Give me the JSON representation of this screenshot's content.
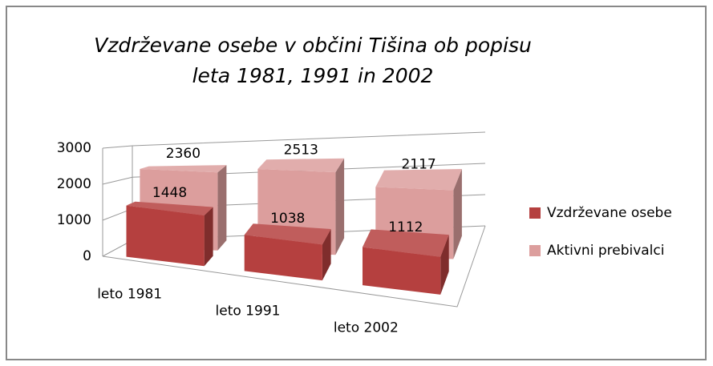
{
  "chart_data": {
    "type": "bar3d",
    "title": "Vzdrževane osebe v občini Tišina ob popisu leta 1981, 1991 in 2002",
    "categories": [
      "leto 1981",
      "leto 1991",
      "leto 2002"
    ],
    "series": [
      {
        "name": "Vzdrževane osebe",
        "color": "#b5403f",
        "values": [
          1448,
          1038,
          1112
        ]
      },
      {
        "name": "Aktivni prebivalci",
        "color": "#dc9e9d",
        "values": [
          2360,
          2513,
          2117
        ]
      }
    ],
    "ylim": [
      0,
      3000
    ],
    "yticks": [
      0,
      1000,
      2000,
      3000
    ],
    "grid": true,
    "legend": "right"
  }
}
